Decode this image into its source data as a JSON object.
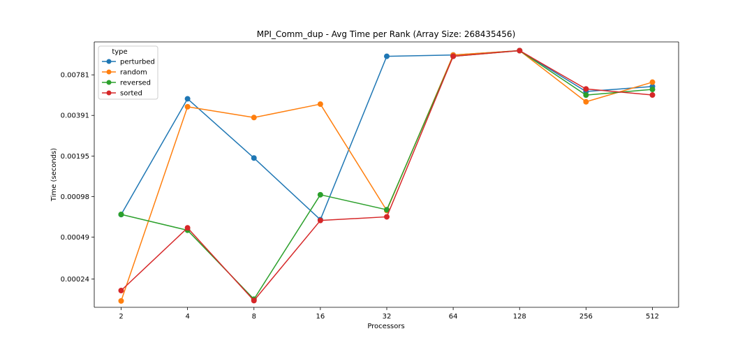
{
  "chart_data": {
    "type": "line",
    "title": "MPI_Comm_dup - Avg Time per Rank (Array Size: 268435456)",
    "xlabel": "Processors",
    "ylabel": "Time (seconds)",
    "y_scale": "log2",
    "categories": [
      "2",
      "4",
      "8",
      "16",
      "32",
      "64",
      "128",
      "256",
      "512"
    ],
    "y_ticks": [
      0.00024,
      0.00049,
      0.00098,
      0.00195,
      0.00391,
      0.00781
    ],
    "y_tick_labels": [
      "0.00024",
      "0.00049",
      "0.00098",
      "0.00195",
      "0.00391",
      "0.00781"
    ],
    "ylim": [
      0.000148,
      0.0137
    ],
    "grid": false,
    "legend": {
      "title": "type",
      "placement": "top-left"
    },
    "series": [
      {
        "name": "perturbed",
        "color": "#1f77b4",
        "values": [
          0.00072,
          0.00519,
          0.00189,
          0.00066,
          0.01072,
          0.01096,
          0.01181,
          0.00588,
          0.0064
        ]
      },
      {
        "name": "random",
        "color": "#ff7f0e",
        "values": [
          0.000165,
          0.00453,
          0.00377,
          0.00474,
          0.000772,
          0.01095,
          0.0118,
          0.00493,
          0.00689
        ]
      },
      {
        "name": "reversed",
        "color": "#2ca02c",
        "values": [
          0.000722,
          0.000551,
          0.00017,
          0.00101,
          0.000782,
          0.01072,
          0.01181,
          0.00553,
          0.00609
        ]
      },
      {
        "name": "sorted",
        "color": "#d62728",
        "values": [
          0.000197,
          0.000574,
          0.000166,
          0.000651,
          0.000693,
          0.01072,
          0.01181,
          0.00614,
          0.00554
        ]
      }
    ]
  }
}
